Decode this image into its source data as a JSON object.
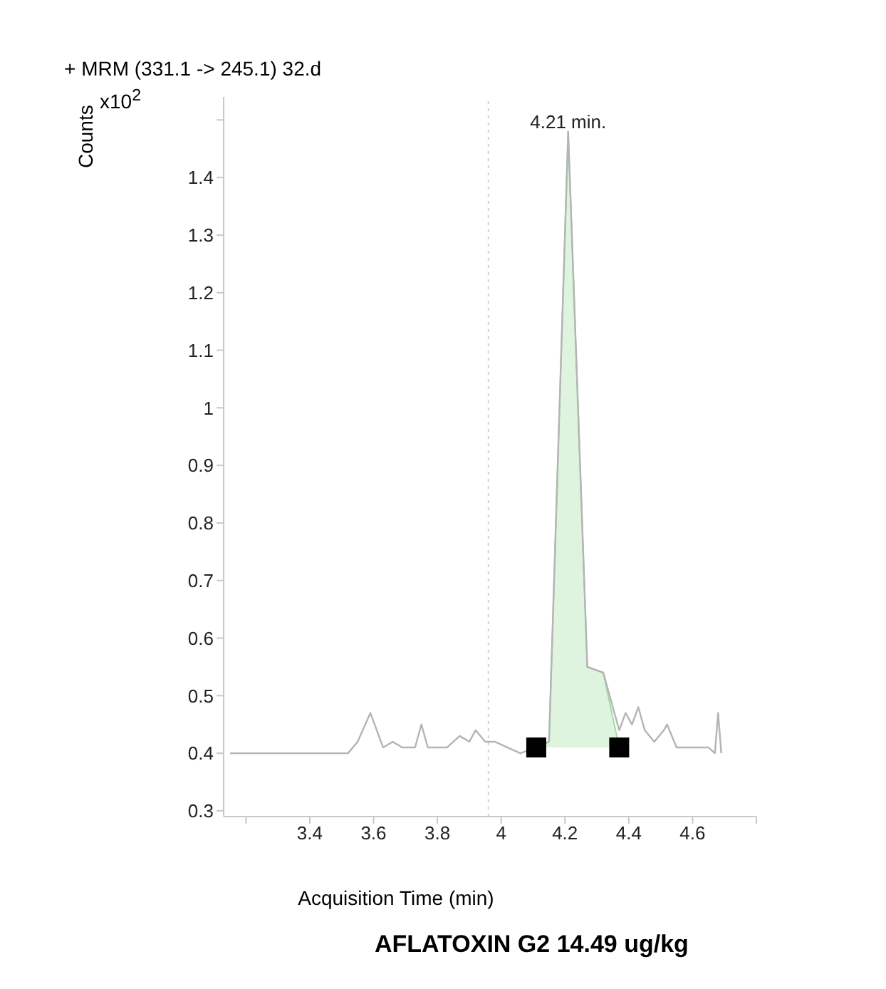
{
  "chart_data": {
    "type": "line",
    "title": "+ MRM (331.1 -> 245.1) 32.d",
    "xlabel": "Acquisition Time (min)",
    "ylabel": "Counts",
    "annotations": [
      "x10$^{2}$",
      {
        "text": "4.21 min.",
        "x": 4.21,
        "y": 1.48
      },
      "AFLATOXIN G2 14.49 ug/kg"
    ],
    "xlim": [
      3.13,
      4.8
    ],
    "xticks": [
      {
        "value": 3.2,
        "label": null
      },
      3.4,
      3.6,
      3.8,
      4,
      4.2,
      4.4,
      4.6,
      {
        "value": 4.8,
        "label": null
      }
    ],
    "ylim": [
      0.29,
      1.54
    ],
    "yticks": [
      0.3,
      0.4,
      0.5,
      0.6,
      0.7,
      0.8,
      0.9,
      1,
      1.1,
      1.2,
      1.3,
      1.4,
      {
        "value": 1.5,
        "label": null
      }
    ],
    "grid": false,
    "legend": false,
    "ref_lines": [
      {
        "axis": "x",
        "value": 3.96,
        "label": null,
        "color": "#d0d0d0",
        "line_style": "dotted"
      }
    ],
    "series": [
      {
        "color": "#b4b4b4",
        "marker": "none",
        "x": [
          3.15,
          3.52,
          3.55,
          3.59,
          3.61,
          3.63,
          3.66,
          3.69,
          3.73,
          3.75,
          3.77,
          3.8,
          3.83,
          3.87,
          3.9,
          3.92,
          3.95,
          3.98,
          4.02,
          4.06,
          4.11,
          4.15,
          4.21,
          4.27,
          4.32,
          4.37,
          4.39,
          4.41,
          4.43,
          4.45,
          4.48,
          4.51,
          4.52,
          4.55,
          4.59,
          4.61,
          4.65,
          4.67,
          4.68,
          4.69
        ],
        "values": [
          0.4,
          0.4,
          0.42,
          0.47,
          0.44,
          0.41,
          0.42,
          0.41,
          0.41,
          0.45,
          0.41,
          0.41,
          0.41,
          0.43,
          0.42,
          0.44,
          0.42,
          0.42,
          0.41,
          0.4,
          0.41,
          0.42,
          1.48,
          0.55,
          0.54,
          0.44,
          0.47,
          0.45,
          0.48,
          0.44,
          0.42,
          0.44,
          0.45,
          0.41,
          0.41,
          0.41,
          0.41,
          0.4,
          0.47,
          0.4
        ]
      },
      {
        "type": "area",
        "color": "#c8ecc8",
        "x": [
          4.11,
          4.15,
          4.21,
          4.27,
          4.32,
          4.37
        ],
        "values": [
          0.41,
          0.42,
          1.48,
          0.55,
          0.54,
          0.41
        ]
      },
      {
        "type": "scatter",
        "color": "#000000",
        "marker": "square",
        "x": [
          4.11,
          4.37
        ],
        "values": [
          0.41,
          0.41
        ]
      }
    ]
  }
}
